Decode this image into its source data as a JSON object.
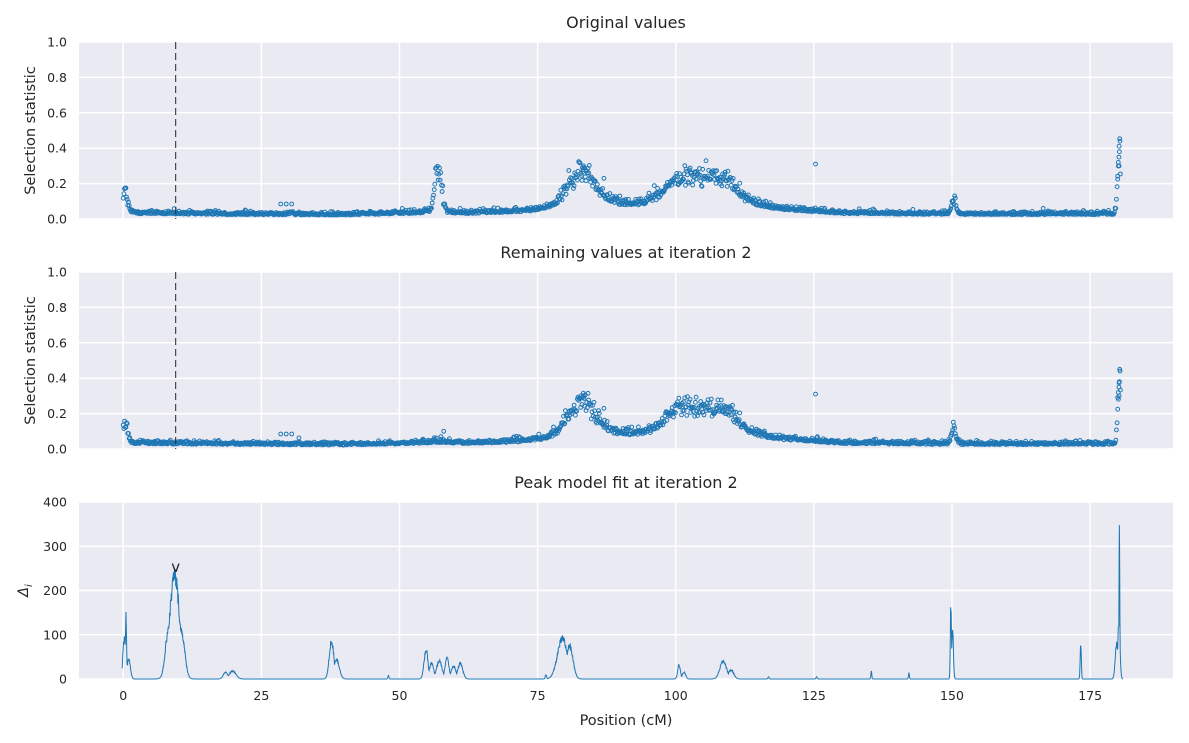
{
  "chart_data": [
    {
      "type": "scatter",
      "title": "Original values",
      "xlabel": "",
      "ylabel": "Selection statistic",
      "xlim": [
        -8,
        190
      ],
      "ylim": [
        0,
        1
      ],
      "yticks": [
        "0.0",
        "0.2",
        "0.4",
        "0.6",
        "0.8",
        "1.0"
      ],
      "ytick_values": [
        0,
        0.2,
        0.4,
        0.6,
        0.8,
        1.0
      ],
      "xtick_values": [
        0,
        25,
        50,
        75,
        100,
        125,
        150,
        175
      ],
      "grid": true,
      "marker_color": "#1f77b4",
      "vline_x": 9.5,
      "features": {
        "baseline": [
          [
            0,
            0.03
          ],
          [
            20,
            0.025
          ],
          [
            40,
            0.022
          ],
          [
            52,
            0.03
          ],
          [
            57,
            0.035
          ],
          [
            62,
            0.03
          ],
          [
            72,
            0.04
          ],
          [
            78,
            0.06
          ],
          [
            85,
            0.08
          ],
          [
            95,
            0.075
          ],
          [
            102,
            0.09
          ],
          [
            110,
            0.085
          ],
          [
            120,
            0.05
          ],
          [
            130,
            0.03
          ],
          [
            150,
            0.025
          ],
          [
            170,
            0.025
          ],
          [
            180,
            0.025
          ]
        ],
        "peaks": [
          [
            0.3,
            0.12,
            0.5
          ],
          [
            57,
            0.28,
            0.6
          ],
          [
            83,
            0.2,
            2.5
          ],
          [
            101,
            0.15,
            3
          ],
          [
            108,
            0.14,
            3
          ],
          [
            150.3,
            0.1,
            0.4
          ],
          [
            180.3,
            0.4,
            0.3
          ]
        ],
        "extra_points": [
          [
            28.5,
            0.085
          ],
          [
            29.5,
            0.085
          ],
          [
            30.5,
            0.085
          ],
          [
            125.3,
            0.31
          ],
          [
            83.3,
            0.3
          ],
          [
            83.1,
            0.29
          ],
          [
            87,
            0.23
          ],
          [
            180.4,
            0.44
          ],
          [
            180.3,
            0.38
          ],
          [
            180.2,
            0.35
          ],
          [
            180.1,
            0.32
          ],
          [
            180.25,
            0.3
          ],
          [
            180.0,
            0.225
          ],
          [
            50.5,
            0.06
          ],
          [
            61,
            0.06
          ],
          [
            166.5,
            0.06
          ]
        ]
      }
    },
    {
      "type": "scatter",
      "title": "Remaining values at iteration 2",
      "xlabel": "",
      "ylabel": "Selection statistic",
      "xlim": [
        -8,
        190
      ],
      "ylim": [
        0,
        1
      ],
      "yticks": [
        "0.0",
        "0.2",
        "0.4",
        "0.6",
        "0.8",
        "1.0"
      ],
      "ytick_values": [
        0,
        0.2,
        0.4,
        0.6,
        0.8,
        1.0
      ],
      "xtick_values": [
        0,
        25,
        50,
        75,
        100,
        125,
        150,
        175
      ],
      "grid": true,
      "marker_color": "#1f77b4",
      "vline_x": 9.5,
      "features": {
        "baseline": [
          [
            0,
            0.03
          ],
          [
            20,
            0.025
          ],
          [
            40,
            0.022
          ],
          [
            52,
            0.03
          ],
          [
            57,
            0.035
          ],
          [
            62,
            0.03
          ],
          [
            72,
            0.04
          ],
          [
            78,
            0.06
          ],
          [
            85,
            0.08
          ],
          [
            95,
            0.075
          ],
          [
            102,
            0.09
          ],
          [
            110,
            0.085
          ],
          [
            120,
            0.05
          ],
          [
            130,
            0.03
          ],
          [
            150,
            0.025
          ],
          [
            170,
            0.025
          ],
          [
            180,
            0.025
          ]
        ],
        "peaks": [
          [
            0.3,
            0.12,
            0.5
          ],
          [
            83,
            0.2,
            2.5
          ],
          [
            101,
            0.15,
            3
          ],
          [
            108,
            0.14,
            3
          ],
          [
            150.3,
            0.1,
            0.4
          ],
          [
            180.3,
            0.4,
            0.3
          ]
        ],
        "extra_points": [
          [
            28.5,
            0.085
          ],
          [
            29.5,
            0.085
          ],
          [
            30.5,
            0.085
          ],
          [
            125.3,
            0.31
          ],
          [
            83.3,
            0.3
          ],
          [
            83.1,
            0.29
          ],
          [
            87,
            0.23
          ],
          [
            180.4,
            0.44
          ],
          [
            180.3,
            0.38
          ],
          [
            180.2,
            0.35
          ],
          [
            180.1,
            0.32
          ],
          [
            180.25,
            0.3
          ],
          [
            180.0,
            0.225
          ],
          [
            58,
            0.1
          ],
          [
            57.5,
            0.07
          ]
        ]
      }
    },
    {
      "type": "line",
      "title": "Peak model fit at iteration 2",
      "xlabel": "Position (cM)",
      "ylabel": "Δ",
      "ylabel_subscript": "i",
      "xlim": [
        -8,
        190
      ],
      "ylim": [
        0,
        400
      ],
      "yticks": [
        "0",
        "100",
        "200",
        "300",
        "400"
      ],
      "ytick_values": [
        0,
        100,
        200,
        300,
        400
      ],
      "xticks": [
        "0",
        "25",
        "50",
        "75",
        "100",
        "125",
        "150",
        "175"
      ],
      "xtick_values": [
        0,
        25,
        50,
        75,
        100,
        125,
        150,
        175
      ],
      "grid": true,
      "line_color": "#1f77b4",
      "annotation": {
        "text": "v",
        "x": 9.5,
        "y": 235
      },
      "peaks": [
        [
          0.2,
          95,
          0.25
        ],
        [
          0.5,
          140,
          0.12
        ],
        [
          1.0,
          45,
          0.3
        ],
        [
          9.3,
          232,
          0.9
        ],
        [
          8.3,
          120,
          0.6
        ],
        [
          10.5,
          110,
          0.6
        ],
        [
          18.5,
          15,
          0.4
        ],
        [
          19.8,
          18,
          0.6
        ],
        [
          37.7,
          85,
          0.4
        ],
        [
          38.6,
          45,
          0.5
        ],
        [
          48,
          8,
          0.1
        ],
        [
          54.8,
          65,
          0.35
        ],
        [
          55.8,
          35,
          0.4
        ],
        [
          57.2,
          40,
          0.5
        ],
        [
          58.6,
          48,
          0.35
        ],
        [
          59.8,
          28,
          0.45
        ],
        [
          61,
          35,
          0.45
        ],
        [
          76.5,
          10,
          0.12
        ],
        [
          79.5,
          90,
          0.9
        ],
        [
          80.8,
          75,
          0.6
        ],
        [
          100.6,
          32,
          0.25
        ],
        [
          101.5,
          15,
          0.3
        ],
        [
          108.6,
          40,
          0.6
        ],
        [
          110,
          20,
          0.5
        ],
        [
          116.8,
          5,
          0.1
        ],
        [
          125.5,
          5,
          0.1
        ],
        [
          135.4,
          18,
          0.08
        ],
        [
          142.2,
          14,
          0.08
        ],
        [
          149.8,
          170,
          0.1
        ],
        [
          150.1,
          110,
          0.15
        ],
        [
          173.3,
          82,
          0.1
        ],
        [
          179.8,
          80,
          0.25
        ],
        [
          180.3,
          365,
          0.07
        ],
        [
          180.2,
          130,
          0.2
        ]
      ]
    }
  ]
}
